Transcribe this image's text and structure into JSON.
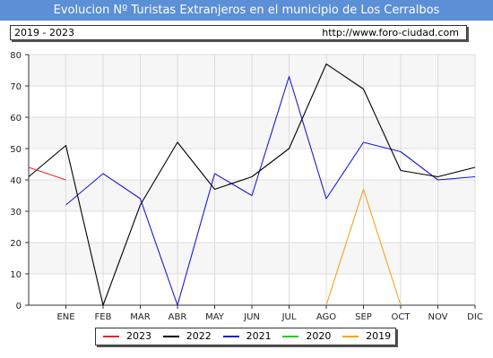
{
  "header": {
    "title": "Evolucion Nº Turistas Extranjeros en el municipio de Los Cerralbos",
    "period": "2019 - 2023",
    "url": "http://www.foro-ciudad.com"
  },
  "colors": {
    "title_bg": "#5b8fd6",
    "2023": "#e8262a",
    "2022": "#000000",
    "2021": "#1a1ad6",
    "2020": "#22cc22",
    "2019": "#f5a31a"
  },
  "chart_data": {
    "type": "line",
    "title": "Evolucion Nº Turistas Extranjeros en el municipio de Los Cerralbos",
    "categories": [
      "ENE",
      "FEB",
      "MAR",
      "ABR",
      "MAY",
      "JUN",
      "JUL",
      "AGO",
      "SEP",
      "OCT",
      "NOV",
      "DIC"
    ],
    "ylim": [
      0,
      80
    ],
    "yticks": [
      0,
      10,
      20,
      30,
      40,
      50,
      60,
      70,
      80
    ],
    "grid": true,
    "legend_placement": "bottom",
    "series": [
      {
        "name": "2023",
        "x": [
          -1,
          0
        ],
        "values": [
          44,
          40
        ]
      },
      {
        "name": "2022",
        "x": [
          -1,
          0,
          1,
          2,
          3,
          4,
          5,
          6,
          7,
          8,
          9,
          10,
          11
        ],
        "values": [
          41,
          51,
          0,
          32,
          52,
          37,
          41,
          50,
          77,
          69,
          43,
          41,
          44
        ]
      },
      {
        "name": "2021",
        "x": [
          0,
          1,
          2,
          3,
          4,
          5,
          6,
          7,
          8,
          9,
          10,
          11
        ],
        "values": [
          32,
          42,
          34,
          0,
          42,
          35,
          73,
          34,
          52,
          49,
          40,
          41
        ]
      },
      {
        "name": "2020",
        "x": [],
        "values": []
      },
      {
        "name": "2019",
        "x": [
          7,
          8,
          9
        ],
        "values": [
          0,
          37,
          0
        ]
      }
    ]
  }
}
